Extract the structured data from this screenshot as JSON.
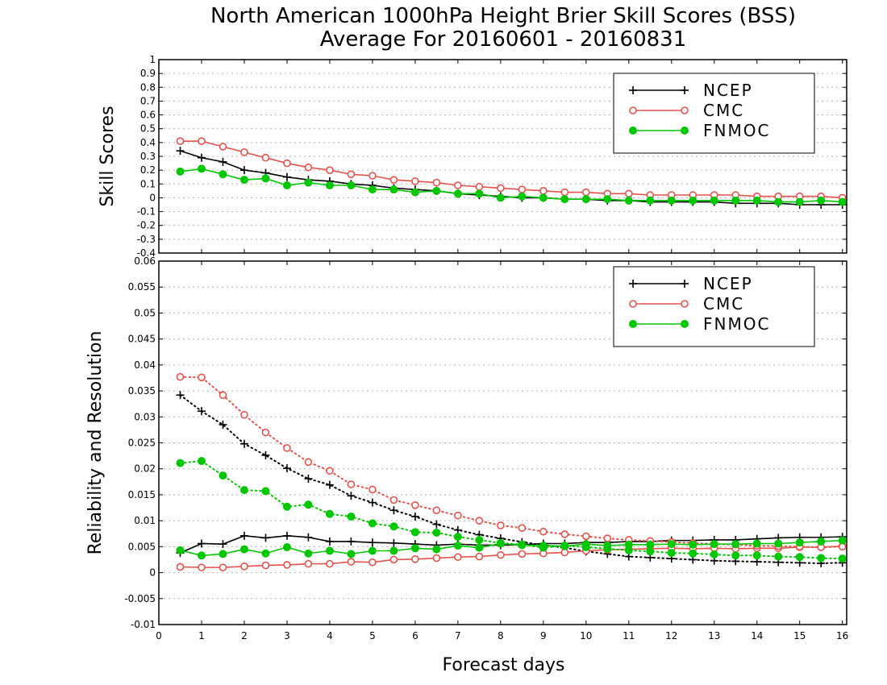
{
  "title": "North American 1000hPa Height Brier Skill Scores (BSS)",
  "subtitle": "Average For 20160601 - 20160831",
  "colors": {
    "NCEP": "#000000",
    "CMC": "#e8504a",
    "FNMOC": "#00c800"
  },
  "chart_data": [
    {
      "type": "line",
      "panel": "top",
      "ylabel": "Skill Scores",
      "xlabel": "",
      "ylim": [
        -0.4,
        1
      ],
      "yticks": [
        -0.4,
        -0.3,
        -0.2,
        -0.1,
        0,
        0.1,
        0.2,
        0.3,
        0.4,
        0.5,
        0.6,
        0.7,
        0.8,
        0.9,
        1
      ],
      "yticklabels": [
        "-0.4",
        "-0.3",
        "-0.2",
        "-0.1",
        "0",
        "0.1",
        "0.2",
        "0.3",
        "0.4",
        "0.5",
        "0.6",
        "0.7",
        "0.8",
        "0.9",
        "1"
      ],
      "xlim": [
        0,
        16.1
      ],
      "grid": "horizontal dotted",
      "legend": "top-right",
      "x": [
        0.5,
        1,
        1.5,
        2,
        2.5,
        3,
        3.5,
        4,
        4.5,
        5,
        5.5,
        6,
        6.5,
        7,
        7.5,
        8,
        8.5,
        9,
        9.5,
        10,
        10.5,
        11,
        11.5,
        12,
        12.5,
        13,
        13.5,
        14,
        14.5,
        15,
        15.5,
        16
      ],
      "series": [
        {
          "name": "NCEP",
          "style": "solid",
          "marker": "plus",
          "values": [
            0.34,
            0.29,
            0.26,
            0.2,
            0.18,
            0.15,
            0.13,
            0.12,
            0.1,
            0.09,
            0.07,
            0.06,
            0.05,
            0.03,
            0.02,
            0.01,
            0.0,
            0.0,
            -0.01,
            -0.01,
            -0.02,
            -0.02,
            -0.03,
            -0.03,
            -0.03,
            -0.03,
            -0.04,
            -0.04,
            -0.04,
            -0.05,
            -0.05,
            -0.05
          ]
        },
        {
          "name": "CMC",
          "style": "solid",
          "marker": "open-circle",
          "values": [
            0.41,
            0.41,
            0.37,
            0.33,
            0.29,
            0.25,
            0.22,
            0.2,
            0.17,
            0.16,
            0.13,
            0.12,
            0.11,
            0.09,
            0.08,
            0.07,
            0.06,
            0.05,
            0.04,
            0.04,
            0.03,
            0.03,
            0.02,
            0.02,
            0.02,
            0.02,
            0.02,
            0.01,
            0.01,
            0.01,
            0.01,
            0.0
          ]
        },
        {
          "name": "FNMOC",
          "style": "solid",
          "marker": "filled-circle",
          "values": [
            0.19,
            0.21,
            0.17,
            0.13,
            0.14,
            0.09,
            0.11,
            0.09,
            0.09,
            0.06,
            0.06,
            0.04,
            0.05,
            0.03,
            0.03,
            0.0,
            0.01,
            0.0,
            -0.01,
            -0.01,
            -0.01,
            -0.02,
            -0.02,
            -0.02,
            -0.02,
            -0.02,
            -0.02,
            -0.02,
            -0.03,
            -0.03,
            -0.02,
            -0.03
          ]
        }
      ]
    },
    {
      "type": "line",
      "panel": "bottom",
      "ylabel": "Reliability and Resolution",
      "xlabel": "Forecast days",
      "ylim": [
        -0.01,
        0.06
      ],
      "yticks": [
        -0.01,
        -0.005,
        0,
        0.005,
        0.01,
        0.015,
        0.02,
        0.025,
        0.03,
        0.035,
        0.04,
        0.045,
        0.05,
        0.055,
        0.06
      ],
      "yticklabels": [
        "-0.01",
        "-0.005",
        "0",
        "0.005",
        "0.01",
        "0.015",
        "0.02",
        "0.025",
        "0.03",
        "0.035",
        "0.04",
        "0.045",
        "0.05",
        "0.055",
        "0.06"
      ],
      "xlim": [
        0,
        16.1
      ],
      "xticks": [
        0,
        1,
        2,
        3,
        4,
        5,
        6,
        7,
        8,
        9,
        10,
        11,
        12,
        13,
        14,
        15,
        16
      ],
      "xticklabels": [
        "0",
        "1",
        "2",
        "3",
        "4",
        "5",
        "6",
        "7",
        "8",
        "9",
        "10",
        "11",
        "12",
        "13",
        "14",
        "15",
        "16"
      ],
      "grid": "horizontal dotted",
      "legend": "top-right",
      "x": [
        0.5,
        1,
        1.5,
        2,
        2.5,
        3,
        3.5,
        4,
        4.5,
        5,
        5.5,
        6,
        6.5,
        7,
        7.5,
        8,
        8.5,
        9,
        9.5,
        10,
        10.5,
        11,
        11.5,
        12,
        12.5,
        13,
        13.5,
        14,
        14.5,
        15,
        15.5,
        16
      ],
      "series": [
        {
          "name": "NCEP",
          "style": "solid",
          "marker": "plus",
          "values": [
            0.0038,
            0.0056,
            0.0055,
            0.0071,
            0.0067,
            0.0071,
            0.0068,
            0.006,
            0.006,
            0.0058,
            0.0057,
            0.0055,
            0.0053,
            0.0055,
            0.0053,
            0.0053,
            0.0054,
            0.0056,
            0.0056,
            0.0058,
            0.0058,
            0.006,
            0.006,
            0.0062,
            0.0062,
            0.0063,
            0.0063,
            0.0065,
            0.0067,
            0.0068,
            0.0068,
            0.0069
          ]
        },
        {
          "name": "NCEP",
          "style": "dotted",
          "marker": "plus",
          "values": [
            0.0342,
            0.0311,
            0.0285,
            0.0248,
            0.0226,
            0.0201,
            0.0181,
            0.0169,
            0.0148,
            0.0135,
            0.012,
            0.0108,
            0.0093,
            0.0082,
            0.0073,
            0.0066,
            0.0059,
            0.0053,
            0.0048,
            0.0041,
            0.0036,
            0.0031,
            0.0029,
            0.0027,
            0.0025,
            0.0023,
            0.0022,
            0.0021,
            0.002,
            0.0019,
            0.0018,
            0.0019
          ]
        },
        {
          "name": "CMC",
          "style": "solid",
          "marker": "open-circle",
          "values": [
            0.0011,
            0.001,
            0.001,
            0.0012,
            0.0014,
            0.0015,
            0.0017,
            0.0017,
            0.0021,
            0.002,
            0.0025,
            0.0026,
            0.0028,
            0.003,
            0.0031,
            0.0034,
            0.0036,
            0.0037,
            0.0039,
            0.0042,
            0.0044,
            0.0045,
            0.0046,
            0.0047,
            0.0046,
            0.0047,
            0.0046,
            0.0047,
            0.0047,
            0.0049,
            0.0049,
            0.0051
          ]
        },
        {
          "name": "CMC",
          "style": "dotted",
          "marker": "open-circle",
          "values": [
            0.0377,
            0.0376,
            0.0342,
            0.0304,
            0.027,
            0.024,
            0.0213,
            0.0196,
            0.017,
            0.016,
            0.014,
            0.013,
            0.012,
            0.011,
            0.01,
            0.0091,
            0.0086,
            0.0079,
            0.0074,
            0.007,
            0.0066,
            0.0063,
            0.0061,
            0.0059,
            0.0057,
            0.0055,
            0.0054,
            0.0052,
            0.0051,
            0.005,
            0.0049,
            0.005
          ]
        },
        {
          "name": "FNMOC",
          "style": "solid",
          "marker": "filled-circle",
          "values": [
            0.0043,
            0.0033,
            0.0036,
            0.0045,
            0.0037,
            0.0049,
            0.0037,
            0.0042,
            0.0036,
            0.0042,
            0.0042,
            0.0047,
            0.0045,
            0.0052,
            0.0048,
            0.0056,
            0.0053,
            0.0052,
            0.0051,
            0.0055,
            0.0052,
            0.0054,
            0.0054,
            0.0055,
            0.0054,
            0.0055,
            0.0055,
            0.0056,
            0.0056,
            0.0058,
            0.006,
            0.0062
          ]
        },
        {
          "name": "FNMOC",
          "style": "dotted",
          "marker": "filled-circle",
          "values": [
            0.0211,
            0.0215,
            0.0187,
            0.0159,
            0.0157,
            0.0127,
            0.0131,
            0.0113,
            0.0108,
            0.0095,
            0.0089,
            0.0078,
            0.0077,
            0.0069,
            0.0063,
            0.0057,
            0.0054,
            0.0048,
            0.0052,
            0.0049,
            0.0046,
            0.0043,
            0.0041,
            0.0038,
            0.0037,
            0.0035,
            0.0033,
            0.0033,
            0.0031,
            0.003,
            0.0028,
            0.0027
          ]
        }
      ]
    }
  ],
  "legend": [
    {
      "name": "NCEP",
      "marker": "plus"
    },
    {
      "name": "CMC",
      "marker": "open-circle"
    },
    {
      "name": "FNMOC",
      "marker": "filled-circle"
    }
  ]
}
